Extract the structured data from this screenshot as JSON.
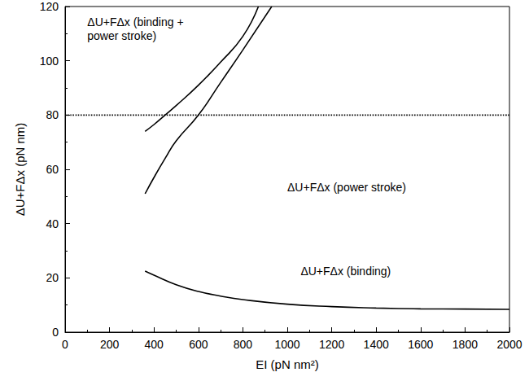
{
  "chart_data": {
    "type": "line",
    "x_label": "EI (pN nm²)",
    "y_label": "ΔU+FΔx (pN nm)",
    "xlim": [
      0,
      2000
    ],
    "xticks": [
      0,
      200,
      400,
      600,
      800,
      1000,
      1200,
      1400,
      1600,
      1800,
      2000
    ],
    "ylim": [
      0,
      120
    ],
    "yticks": [
      0,
      20,
      40,
      60,
      80,
      100,
      120
    ],
    "grid": false,
    "series": [
      {
        "name": "ΔU+FΔx (binding + power stroke)",
        "color": "#000000",
        "line_style": "solid",
        "x": [
          360,
          400,
          450,
          500,
          600,
          700,
          800,
          870
        ],
        "values": [
          74,
          76.5,
          80,
          83.5,
          91,
          99.5,
          109,
          120
        ]
      },
      {
        "name": "ΔU+FΔx (power stroke)",
        "color": "#000000",
        "line_style": "solid",
        "x": [
          360,
          400,
          450,
          500,
          600,
          700,
          800,
          930
        ],
        "values": [
          51,
          57,
          64,
          70.5,
          80,
          92,
          104,
          120
        ]
      },
      {
        "name": "ΔU+FΔx (binding)",
        "color": "#000000",
        "line_style": "solid",
        "x": [
          360,
          400,
          500,
          600,
          700,
          800,
          1000,
          1200,
          1400,
          1600,
          1800,
          2000
        ],
        "values": [
          22.5,
          21,
          17.5,
          15,
          13.3,
          12,
          10.3,
          9.4,
          8.9,
          8.6,
          8.5,
          8.4
        ]
      },
      {
        "color": "#000000",
        "line_style": "dotted",
        "x": [
          0,
          2000
        ],
        "values": [
          80,
          80
        ]
      }
    ]
  }
}
